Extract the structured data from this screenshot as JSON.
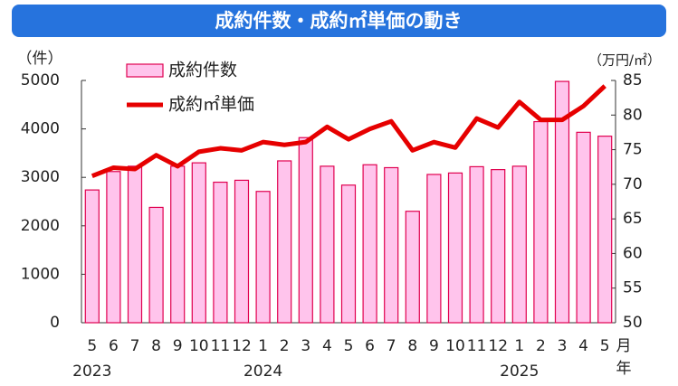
{
  "chart_data": {
    "type": "bar_line",
    "title": "成約件数・成約㎡単価の動き",
    "y_label": "（件）",
    "y2_label": "（万円/㎡）",
    "x_unit_month": "月",
    "x_unit_year": "年",
    "categories": [
      "5",
      "6",
      "7",
      "8",
      "9",
      "10",
      "11",
      "12",
      "1",
      "2",
      "3",
      "4",
      "5",
      "6",
      "7",
      "8",
      "9",
      "10",
      "11",
      "12",
      "1",
      "2",
      "3",
      "4",
      "5"
    ],
    "years": [
      "2023",
      null,
      null,
      null,
      null,
      null,
      null,
      null,
      "2024",
      null,
      null,
      null,
      null,
      null,
      null,
      null,
      null,
      null,
      null,
      null,
      "2025",
      null,
      null,
      null,
      null
    ],
    "series": [
      {
        "name": "成約件数",
        "type": "bar",
        "color": "#ffc4ec",
        "edge_color": "#e0004f",
        "values": [
          2740,
          3120,
          3230,
          2380,
          3230,
          3300,
          2900,
          2940,
          2710,
          3340,
          3820,
          3230,
          2840,
          3260,
          3200,
          2300,
          3060,
          3090,
          3220,
          3160,
          3230,
          4150,
          4980,
          3930,
          3850
        ]
      },
      {
        "name": "成約㎡単価",
        "type": "line",
        "axis": "y2",
        "color": "#e60000",
        "values": [
          71.2,
          72.4,
          72.2,
          74.2,
          72.6,
          74.7,
          75.2,
          74.9,
          76.1,
          75.7,
          76.1,
          78.3,
          76.5,
          78.0,
          79.1,
          74.9,
          76.1,
          75.3,
          79.5,
          78.2,
          81.9,
          79.3,
          79.3,
          81.3,
          84.2
        ]
      }
    ],
    "ylim": [
      0,
      5000
    ],
    "yticks": [
      0,
      1000,
      2000,
      3000,
      4000,
      5000
    ],
    "y2lim": [
      50,
      85
    ],
    "y2ticks": [
      50,
      55,
      60,
      65,
      70,
      75,
      80,
      85
    ],
    "grid": false
  }
}
